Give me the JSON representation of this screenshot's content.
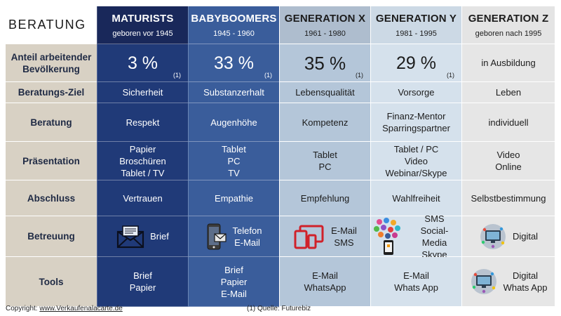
{
  "corner_title": "BERATUNG",
  "generations": [
    {
      "name": "MATURISTS",
      "years": "geboren vor 1945"
    },
    {
      "name": "BABYBOOMERS",
      "years": "1945 - 1960"
    },
    {
      "name": "GENERATION X",
      "years": "1961 - 1980"
    },
    {
      "name": "GENERATION Y",
      "years": "1981 - 1995"
    },
    {
      "name": "GENERATION Z",
      "years": "geboren nach 1995"
    }
  ],
  "rows": {
    "anteil": {
      "label": "Anteil arbeitender Bevölkerung",
      "values": [
        "3 %",
        "33 %",
        "35 %",
        "29 %",
        "in Ausbildung"
      ],
      "footnote": "(1)"
    },
    "ziel": {
      "label": "Beratungs-Ziel",
      "values": [
        "Sicherheit",
        "Substanzerhalt",
        "Lebensqualität",
        "Vorsorge",
        "Leben"
      ]
    },
    "beratung": {
      "label": "Beratung",
      "values": [
        [
          "Respekt"
        ],
        [
          "Augenhöhe"
        ],
        [
          "Kompetenz"
        ],
        [
          "Finanz-Mentor",
          "Sparringspartner"
        ],
        [
          "individuell"
        ]
      ]
    },
    "praesentation": {
      "label": "Präsentation",
      "values": [
        [
          "Papier",
          "Broschüren",
          "Tablet / TV"
        ],
        [
          "Tablet",
          "PC",
          "TV"
        ],
        [
          "Tablet",
          "PC"
        ],
        [
          "Tablet / PC",
          "Video",
          "Webinar/Skype"
        ],
        [
          "Video",
          "Online"
        ]
      ]
    },
    "abschluss": {
      "label": "Abschluss",
      "values": [
        "Vertrauen",
        "Empathie",
        "Empfehlung",
        "Wahlfreiheit",
        "Selbstbestimmung"
      ]
    },
    "betreuung": {
      "label": "Betreuung",
      "values": [
        [
          "Brief"
        ],
        [
          "Telefon",
          "E-Mail"
        ],
        [
          "E-Mail",
          "SMS"
        ],
        [
          "SMS",
          "Social-Media",
          "Skype"
        ],
        [
          "Digital"
        ]
      ],
      "icons": [
        "envelope-icon",
        "phone-mail-icon",
        "devices-icon",
        "social-media-icon",
        "digital-globe-icon"
      ]
    },
    "tools": {
      "label": "Tools",
      "values": [
        [
          "Brief",
          "Papier"
        ],
        [
          "Brief",
          "Papier",
          "E-Mail"
        ],
        [
          "E-Mail",
          "WhatsApp"
        ],
        [
          "E-Mail",
          "Whats App"
        ],
        [
          "Digital",
          "Whats App"
        ]
      ],
      "icons": [
        "digital-globe-icon"
      ]
    }
  },
  "footer": {
    "copyright_label": "Copyright:",
    "copyright_link": "www.Verkaufenalacarte.de",
    "source_note": "(1) Quelle: Futurebiz"
  },
  "colors": {
    "maturists": "#203a78",
    "babyboomers": "#3a5d9b",
    "generation_x": "#b4c6d9",
    "generation_y": "#d5e1ec",
    "generation_z": "#e6e6e6",
    "row_label": "#d8d1c4",
    "icon_red": "#d0212a"
  }
}
